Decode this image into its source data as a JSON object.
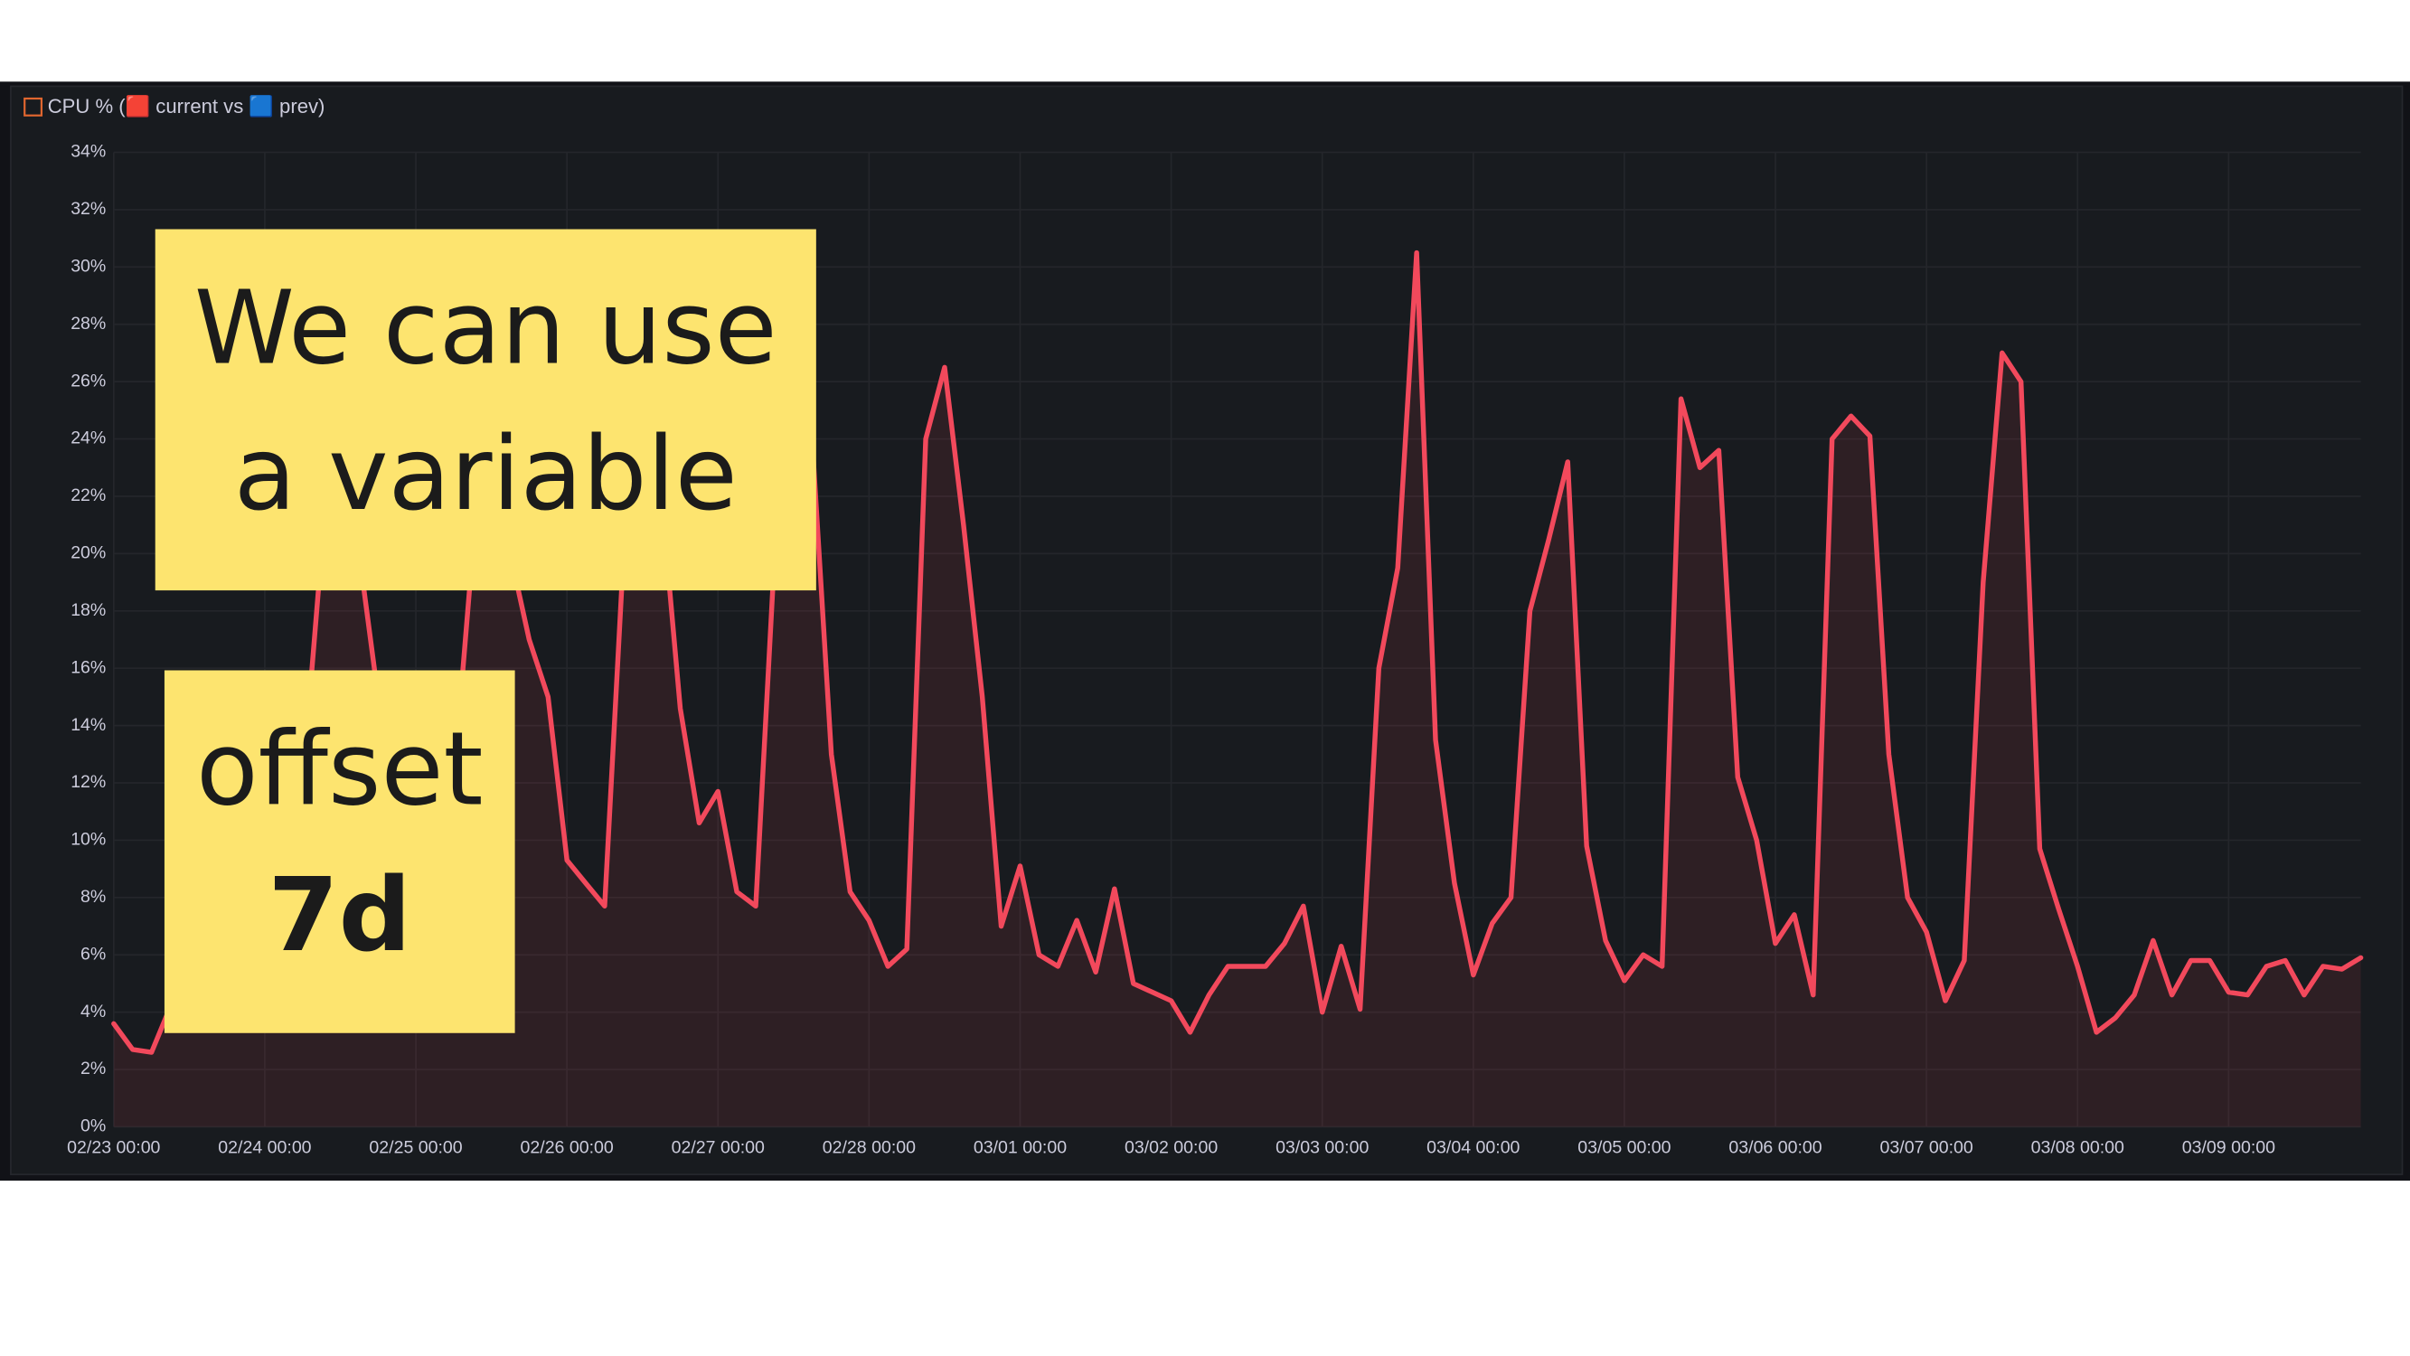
{
  "chart_data": {
    "type": "line",
    "title": "CPU % (🟥 current vs 🟦 prev)",
    "annotations": [
      {
        "lines": [
          "We can use",
          "a variable"
        ]
      },
      {
        "lines": [
          "offset",
          "7d"
        ]
      }
    ],
    "x": [
      "02/23 00:00",
      "02/23 03:00",
      "02/23 06:00",
      "02/23 09:00",
      "02/23 12:00",
      "02/23 15:00",
      "02/23 18:00",
      "02/23 21:00",
      "02/24 00:00",
      "02/24 03:00",
      "02/24 06:00",
      "02/24 09:00",
      "02/24 12:00",
      "02/24 15:00",
      "02/24 18:00",
      "02/24 21:00",
      "02/25 00:00",
      "02/25 03:00",
      "02/25 06:00",
      "02/25 09:00",
      "02/25 12:00",
      "02/25 15:00",
      "02/25 18:00",
      "02/25 21:00",
      "02/26 00:00",
      "02/26 03:00",
      "02/26 06:00",
      "02/26 09:00",
      "02/26 12:00",
      "02/26 15:00",
      "02/26 18:00",
      "02/26 21:00",
      "02/27 00:00",
      "02/27 03:00",
      "02/27 06:00",
      "02/27 09:00",
      "02/27 12:00",
      "02/27 15:00",
      "02/27 18:00",
      "02/27 21:00",
      "02/28 00:00",
      "02/28 03:00",
      "02/28 06:00",
      "02/28 09:00",
      "02/28 12:00",
      "02/28 15:00",
      "02/28 18:00",
      "02/28 21:00",
      "03/01 00:00",
      "03/01 03:00",
      "03/01 06:00",
      "03/01 09:00",
      "03/01 12:00",
      "03/01 15:00",
      "03/01 18:00",
      "03/01 21:00",
      "03/02 00:00",
      "03/02 03:00",
      "03/02 06:00",
      "03/02 09:00",
      "03/02 12:00",
      "03/02 15:00",
      "03/02 18:00",
      "03/02 21:00",
      "03/03 00:00",
      "03/03 03:00",
      "03/03 06:00",
      "03/03 09:00",
      "03/03 12:00",
      "03/03 15:00",
      "03/03 18:00",
      "03/03 21:00",
      "03/04 00:00",
      "03/04 03:00",
      "03/04 06:00",
      "03/04 09:00",
      "03/04 12:00",
      "03/04 15:00",
      "03/04 18:00",
      "03/04 21:00",
      "03/05 00:00",
      "03/05 03:00",
      "03/05 06:00",
      "03/05 09:00",
      "03/05 12:00",
      "03/05 15:00",
      "03/05 18:00",
      "03/05 21:00",
      "03/06 00:00",
      "03/06 03:00",
      "03/06 06:00",
      "03/06 09:00",
      "03/06 12:00",
      "03/06 15:00",
      "03/06 18:00",
      "03/06 21:00",
      "03/07 00:00",
      "03/07 03:00",
      "03/07 06:00",
      "03/07 09:00",
      "03/07 12:00",
      "03/07 15:00",
      "03/07 18:00",
      "03/07 21:00",
      "03/08 00:00",
      "03/08 03:00",
      "03/08 06:00",
      "03/08 09:00",
      "03/08 12:00",
      "03/08 15:00",
      "03/08 18:00",
      "03/08 21:00",
      "03/09 00:00",
      "03/09 03:00",
      "03/09 06:00",
      "03/09 09:00",
      "03/09 12:00",
      "03/09 15:00",
      "03/09 18:00",
      "03/09 21:00"
    ],
    "series": [
      {
        "name": "current",
        "color": "#f2495c",
        "values": [
          3.6,
          2.7,
          2.6,
          4.2,
          5,
          5.5,
          6,
          6.5,
          7,
          9,
          12,
          20,
          22,
          20,
          15,
          10,
          8,
          9,
          12,
          20,
          22,
          20,
          17,
          15,
          9.3,
          8.5,
          7.7,
          20,
          24,
          22,
          14.6,
          10.6,
          11.7,
          8.2,
          7.7,
          20,
          23,
          23.8,
          13,
          8.2,
          7.2,
          5.6,
          6.2,
          24,
          26.5,
          21,
          15,
          7,
          9.1,
          6,
          5.6,
          7.2,
          5.4,
          8.3,
          5,
          4.7,
          4.4,
          3.3,
          4.6,
          5.6,
          5.6,
          5.6,
          6.4,
          7.7,
          4,
          6.3,
          4.1,
          16,
          19.5,
          30.5,
          13.5,
          8.5,
          5.3,
          7.1,
          8,
          18,
          20.5,
          23.2,
          9.8,
          6.5,
          5.1,
          6,
          5.6,
          25.4,
          23,
          23.6,
          12.2,
          10,
          6.4,
          7.4,
          4.6,
          24,
          24.8,
          24.1,
          13,
          8,
          6.8,
          4.4,
          5.8,
          19,
          27,
          26,
          9.7,
          7.6,
          5.6,
          3.3,
          3.8,
          4.6,
          6.5,
          4.6,
          5.8,
          5.8,
          4.7,
          4.6,
          5.6,
          5.8,
          4.6,
          5.6,
          5.5,
          5.9
        ]
      }
    ],
    "xlim": [
      "02/23 00:00",
      "03/09 21:00"
    ],
    "xticks": [
      "02/23 00:00",
      "02/24 00:00",
      "02/25 00:00",
      "02/26 00:00",
      "02/27 00:00",
      "02/28 00:00",
      "03/01 00:00",
      "03/02 00:00",
      "03/03 00:00",
      "03/04 00:00",
      "03/05 00:00",
      "03/06 00:00",
      "03/07 00:00",
      "03/08 00:00",
      "03/09 00:00"
    ],
    "ylim": [
      0,
      34
    ],
    "yticks": [
      {
        "value": 0,
        "label": "0%"
      },
      {
        "value": 2,
        "label": "2%"
      },
      {
        "value": 4,
        "label": "4%"
      },
      {
        "value": 6,
        "label": "6%"
      },
      {
        "value": 8,
        "label": "8%"
      },
      {
        "value": 10,
        "label": "10%"
      },
      {
        "value": 12,
        "label": "12%"
      },
      {
        "value": 14,
        "label": "14%"
      },
      {
        "value": 16,
        "label": "16%"
      },
      {
        "value": 18,
        "label": "18%"
      },
      {
        "value": 20,
        "label": "20%"
      },
      {
        "value": 22,
        "label": "22%"
      },
      {
        "value": 24,
        "label": "24%"
      },
      {
        "value": 26,
        "label": "26%"
      },
      {
        "value": 28,
        "label": "28%"
      },
      {
        "value": 30,
        "label": "30%"
      },
      {
        "value": 32,
        "label": "32%"
      },
      {
        "value": 34,
        "label": "34%"
      }
    ],
    "grid": true
  }
}
